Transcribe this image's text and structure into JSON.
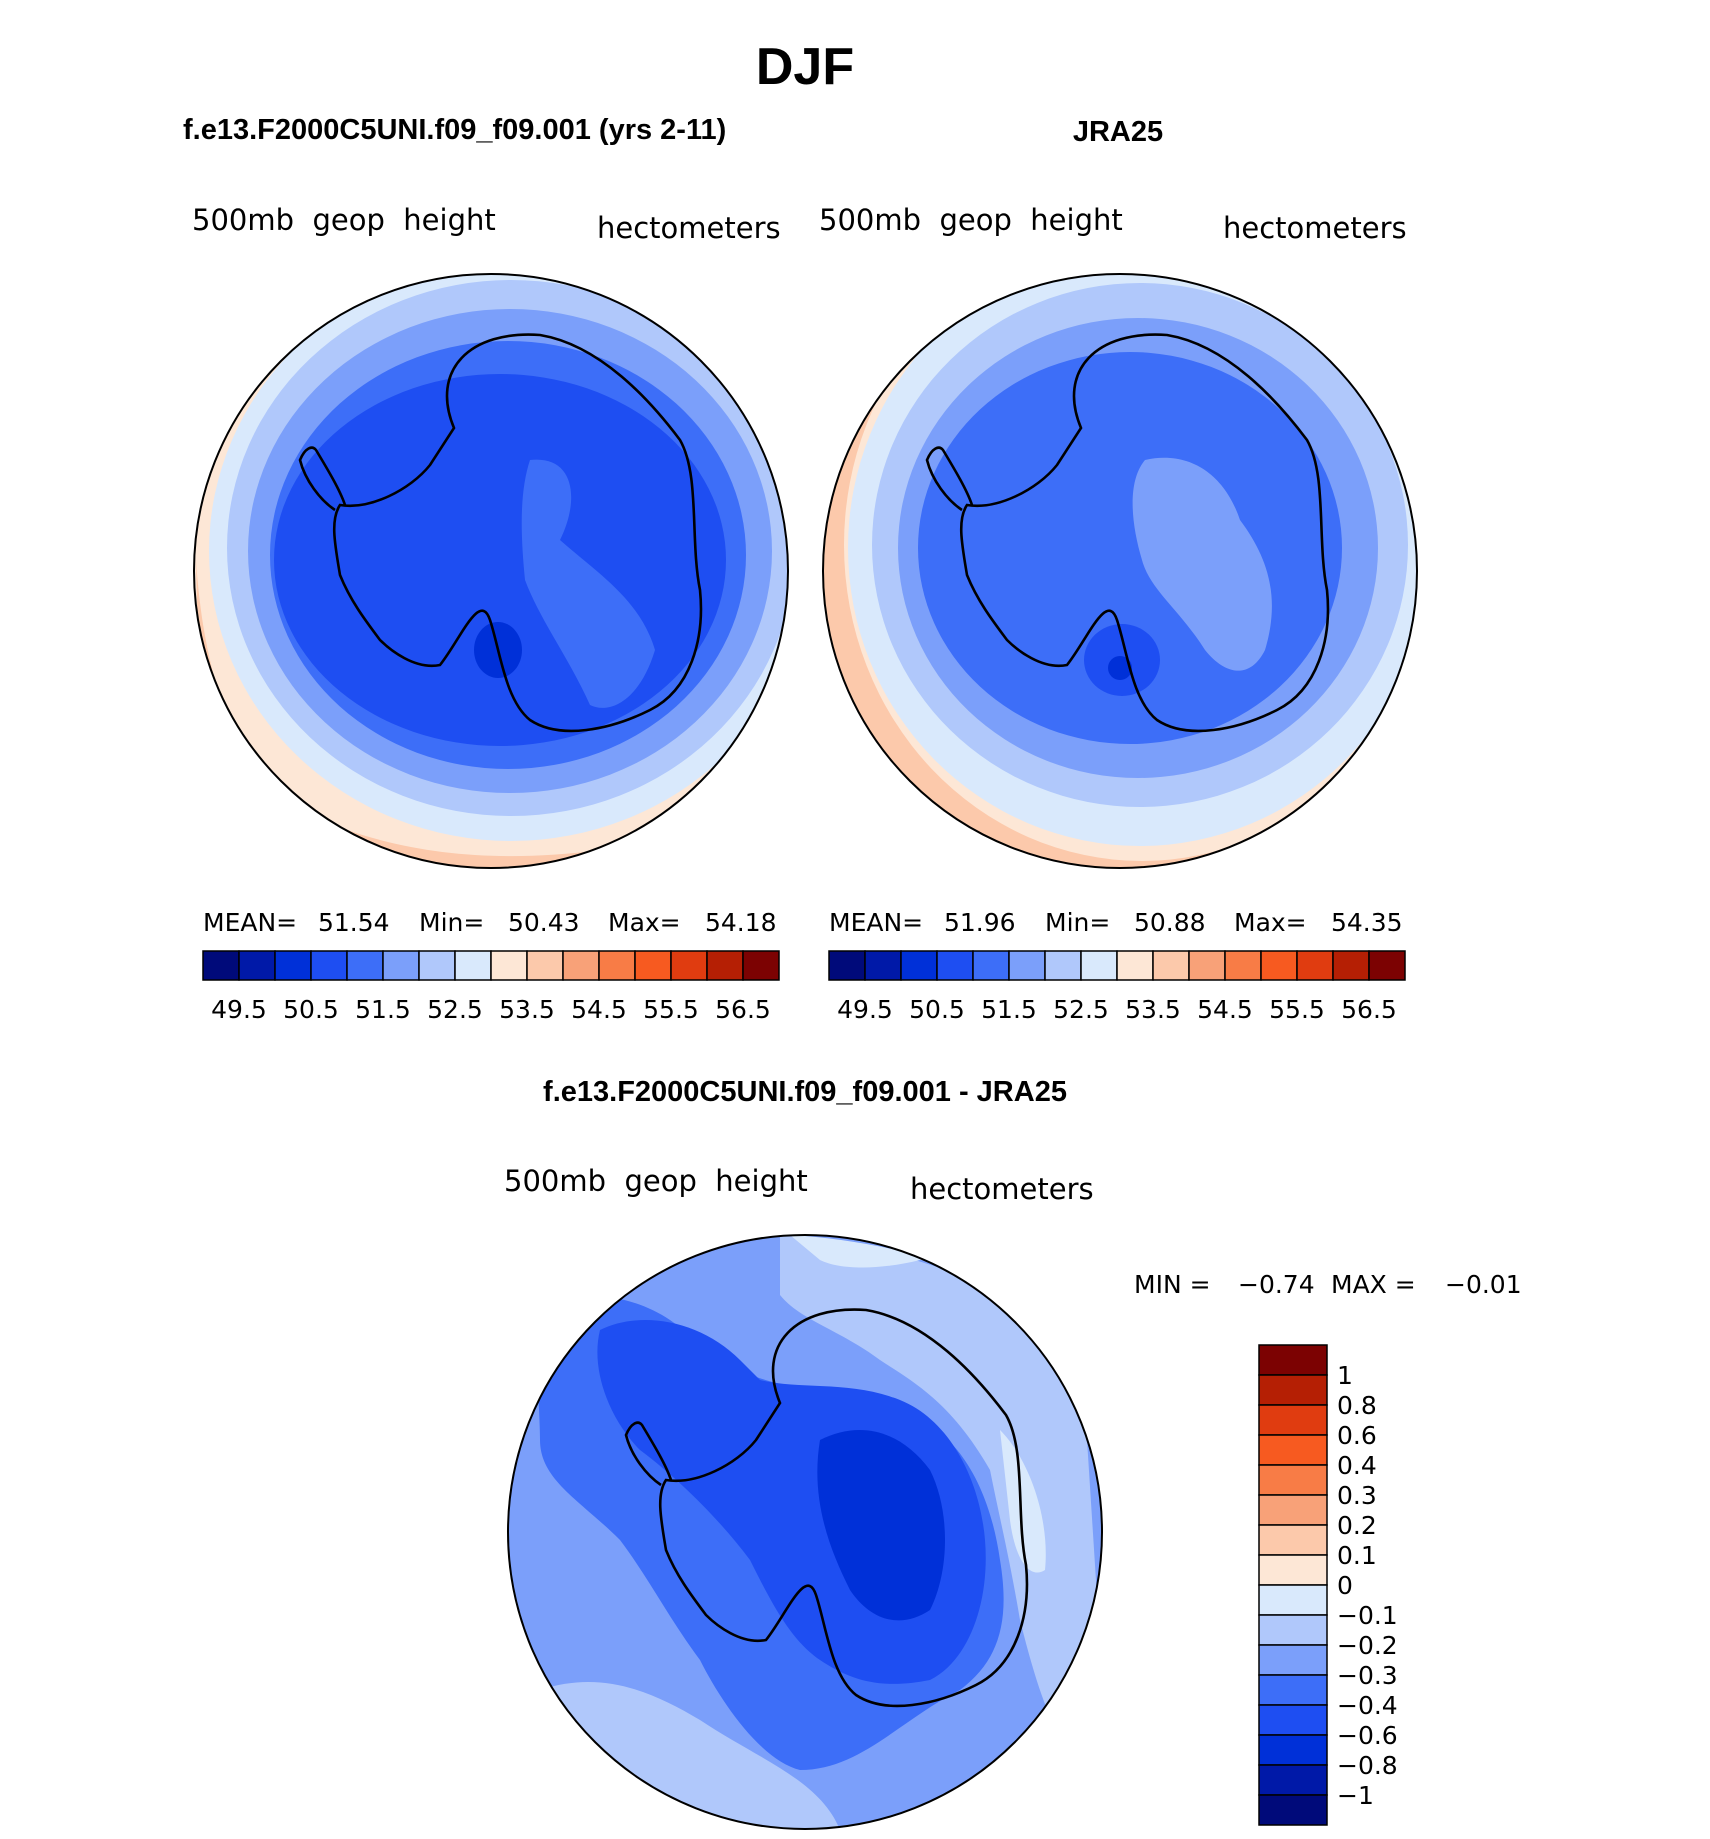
{
  "figure": {
    "season": "DJF",
    "panels": {
      "model": {
        "title": "f.e13.F2000C5UNI.f09_f09.001 (yrs 2-11)",
        "variable": "500mb  geop  height",
        "units": "hectometers",
        "stats": {
          "mean_label": "MEAN=",
          "mean": "51.54",
          "min_label": "Min=",
          "min": "50.43",
          "max_label": "Max=",
          "max": "54.18"
        }
      },
      "obs": {
        "title": "JRA25",
        "variable": "500mb  geop  height",
        "units": "hectometers",
        "stats": {
          "mean_label": "MEAN=",
          "mean": "51.96",
          "min_label": "Min=",
          "min": "50.88",
          "max_label": "Max=",
          "max": "54.35"
        }
      },
      "diff": {
        "title": "f.e13.F2000C5UNI.f09_f09.001 - JRA25",
        "variable": "500mb  geop  height",
        "units": "hectometers",
        "stats": {
          "min_label": "MIN =",
          "min": "−0.74",
          "max_label": "MAX =",
          "max": "−0.01"
        }
      }
    }
  },
  "chart_data": [
    {
      "type": "heatmap",
      "projection": "south-polar-stereographic",
      "title": "f.e13.F2000C5UNI.f09_f09.001 (yrs 2-11)",
      "variable": "500mb geop height",
      "units": "hectometers",
      "mean": 51.54,
      "min": 50.43,
      "max": 54.18,
      "contour_levels": [
        49.5,
        50.5,
        51.5,
        52.5,
        53.5,
        54.5,
        55.5,
        56.5
      ],
      "colorbar_labels": [
        "49.5",
        "50.5",
        "51.5",
        "52.5",
        "53.5",
        "54.5",
        "55.5",
        "56.5"
      ],
      "colorbar_colors": [
        "#000a7a",
        "#0019a8",
        "#0030d8",
        "#1e4ef2",
        "#3d6ef8",
        "#7b9ffa",
        "#b0c8fb",
        "#d9e9fc",
        "#fde7d6",
        "#fcc9ab",
        "#f8a178",
        "#f87c46",
        "#f75a20",
        "#e03c10",
        "#b51f04",
        "#7c0202"
      ]
    },
    {
      "type": "heatmap",
      "projection": "south-polar-stereographic",
      "title": "JRA25",
      "variable": "500mb geop height",
      "units": "hectometers",
      "mean": 51.96,
      "min": 50.88,
      "max": 54.35,
      "contour_levels": [
        49.5,
        50.5,
        51.5,
        52.5,
        53.5,
        54.5,
        55.5,
        56.5
      ],
      "colorbar_labels": [
        "49.5",
        "50.5",
        "51.5",
        "52.5",
        "53.5",
        "54.5",
        "55.5",
        "56.5"
      ],
      "colorbar_colors": [
        "#000a7a",
        "#0019a8",
        "#0030d8",
        "#1e4ef2",
        "#3d6ef8",
        "#7b9ffa",
        "#b0c8fb",
        "#d9e9fc",
        "#fde7d6",
        "#fcc9ab",
        "#f8a178",
        "#f87c46",
        "#f75a20",
        "#e03c10",
        "#b51f04",
        "#7c0202"
      ]
    },
    {
      "type": "heatmap",
      "projection": "south-polar-stereographic",
      "title": "f.e13.F2000C5UNI.f09_f09.001 - JRA25",
      "variable": "500mb geop height",
      "units": "hectometers",
      "min": -0.74,
      "max": -0.01,
      "contour_levels": [
        1,
        0.8,
        0.6,
        0.4,
        0.3,
        0.2,
        0.1,
        0,
        -0.1,
        -0.2,
        -0.3,
        -0.4,
        -0.6,
        -0.8,
        -1
      ],
      "colorbar_labels": [
        "1",
        "0.8",
        "0.6",
        "0.4",
        "0.3",
        "0.2",
        "0.1",
        "0",
        "−0.1",
        "−0.2",
        "−0.3",
        "−0.4",
        "−0.6",
        "−0.8",
        "−1"
      ],
      "colorbar_colors": [
        "#7c0202",
        "#b51f04",
        "#e03c10",
        "#f75a20",
        "#f87c46",
        "#f8a178",
        "#fcc9ab",
        "#fde7d6",
        "#d9e9fc",
        "#b0c8fb",
        "#7b9ffa",
        "#3d6ef8",
        "#1e4ef2",
        "#0030d8",
        "#0019a8",
        "#000a7a"
      ]
    }
  ]
}
